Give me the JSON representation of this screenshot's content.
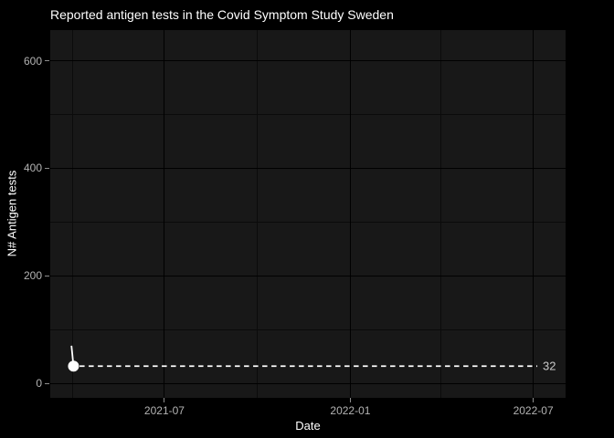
{
  "page": {
    "background_color": "#000000"
  },
  "chart_data": {
    "type": "line",
    "title": "Reported antigen tests in the Covid Symptom Study Sweden",
    "xlabel": "Date",
    "ylabel": "N# Antigen tests",
    "x_domain": [
      "2021-03-10",
      "2022-08-02"
    ],
    "y_domain": [
      -27,
      657
    ],
    "x_ticks": [
      {
        "label": "2021-07",
        "date": "2021-07-01"
      },
      {
        "label": "2022-01",
        "date": "2022-01-01"
      },
      {
        "label": "2022-07",
        "date": "2022-07-01"
      }
    ],
    "x_minor_ticks": [
      "2021-04-01",
      "2021-10-01",
      "2022-04-01"
    ],
    "y_ticks": [
      {
        "label": "0",
        "value": 0
      },
      {
        "label": "200",
        "value": 200
      },
      {
        "label": "400",
        "value": 400
      },
      {
        "label": "600",
        "value": 600
      }
    ],
    "y_minor_ticks": [
      100,
      300,
      500
    ],
    "series": [
      {
        "name": "Reported antigen tests",
        "color": "#ffffff",
        "points": [
          {
            "date": "2021-03-31",
            "value": 70
          },
          {
            "date": "2021-04-02",
            "value": 32
          }
        ],
        "marker_on_last_point": true,
        "marker_radius": 6
      }
    ],
    "annotation": {
      "type": "dashed-hline",
      "value": 32,
      "label": "32",
      "x_start": "2021-04-08",
      "x_end": "2022-07-05",
      "color": "#ffffff"
    },
    "style": {
      "panel_background": "#181818",
      "major_grid_color": "#000000",
      "minor_grid_color": "#0b0b0b",
      "title_color": "#ffffff",
      "axis_title_color": "#ffffff",
      "tick_label_color": "#b3b3b3",
      "tick_mark_color": "#8d8d8d",
      "annotation_label_color": "#c9c9c9"
    },
    "layout_hints": {
      "grid": "on",
      "legend": "none"
    }
  }
}
